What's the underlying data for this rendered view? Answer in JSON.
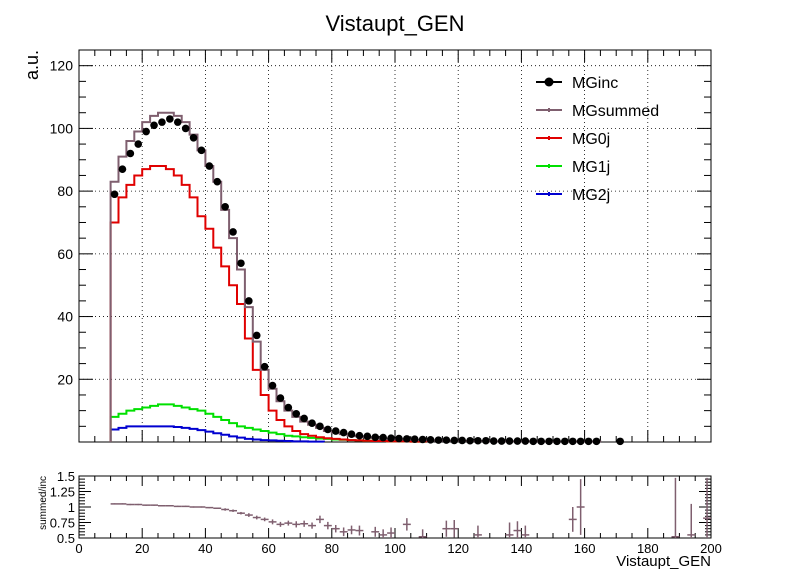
{
  "chart_data": [
    {
      "type": "line",
      "title": "Vistaupt_GEN",
      "xlabel": "",
      "ylabel": "a.u.",
      "xlim": [
        0,
        200
      ],
      "ylim": [
        0,
        125
      ],
      "x_ticks": [
        "0",
        "20",
        "40",
        "60",
        "80",
        "100",
        "120",
        "140",
        "160",
        "180",
        "200"
      ],
      "y_ticks": [
        "20",
        "40",
        "60",
        "80",
        "100",
        "120"
      ],
      "grid": true,
      "legend_position": "top-right",
      "bin_width": 2.5,
      "x_start": 10,
      "series": [
        {
          "name": "MGinc",
          "style": "markers",
          "color": "#000000",
          "values": [
            79,
            87,
            92,
            95,
            99,
            101,
            102,
            103,
            102,
            100,
            97,
            93,
            88,
            83,
            75,
            67,
            57,
            45,
            34,
            24,
            18,
            14,
            11,
            9,
            7.5,
            6,
            5,
            4,
            3.5,
            3,
            2.5,
            2,
            1.8,
            1.5,
            1.4,
            1.2,
            1.1,
            1,
            0.9,
            0.8,
            0.7,
            0.6,
            0.6,
            0.5,
            0.5,
            0.4,
            0.4,
            0.4,
            0.3,
            0.3,
            0.3,
            0.3,
            0.3,
            0.2,
            0.2,
            0.2,
            0.2,
            0.2,
            0.2,
            0.2,
            0.2,
            0.2,
            0,
            0,
            0.2
          ]
        },
        {
          "name": "MGsummed",
          "style": "step",
          "color": "#7f5f6f",
          "values": [
            83,
            91,
            96,
            99,
            102,
            104,
            105,
            105,
            104,
            102,
            98,
            93,
            88,
            83,
            74,
            65,
            55,
            43,
            32,
            23,
            17,
            13,
            10,
            8,
            6.5,
            5.5,
            4.5,
            3.5,
            3,
            2.5,
            2,
            1.8,
            1.5,
            1.3,
            1.1,
            1,
            0.9,
            0.8,
            0.7,
            0.6,
            0.5,
            0.5,
            0.4,
            0.4,
            0.3,
            0.3,
            0.3,
            0.3,
            0.2,
            0.2,
            0.2,
            0.2,
            0.2,
            0.2,
            0.1,
            0.1,
            0.1,
            0.1,
            0.1,
            0.1,
            0.1,
            0.1
          ]
        },
        {
          "name": "MG0j",
          "style": "step",
          "color": "#e00000",
          "values": [
            70,
            78,
            82,
            85,
            87,
            88,
            88,
            87,
            85,
            82,
            78,
            72,
            68,
            62,
            56,
            50,
            44,
            33,
            23,
            15,
            10,
            7,
            5,
            3.5,
            2.5,
            2,
            1.5,
            1.2,
            1,
            0.8,
            0.6,
            0.5,
            0.4,
            0.3,
            0.3,
            0.2,
            0.2,
            0.2,
            0.1,
            0.1
          ]
        },
        {
          "name": "MG1j",
          "style": "step",
          "color": "#00e000",
          "values": [
            8,
            9,
            10,
            10.5,
            11,
            11.5,
            12,
            12,
            11.5,
            11,
            10.5,
            10,
            9,
            8,
            7,
            6,
            5,
            4.5,
            4,
            3.5,
            3,
            2.5,
            2,
            1.8,
            1.5,
            1.3,
            1.1,
            1,
            0.8,
            0.7,
            0.6,
            0.5,
            0.4,
            0.3,
            0.3,
            0.2,
            0.2,
            0.2,
            0.1,
            0.1
          ]
        },
        {
          "name": "MG2j",
          "style": "step",
          "color": "#0000d0",
          "values": [
            4,
            4.5,
            5,
            5,
            5,
            5,
            5,
            5,
            4.8,
            4.5,
            4.2,
            3.8,
            3.3,
            2.8,
            2.3,
            1.8,
            1.4,
            1,
            0.8,
            0.6,
            0.5,
            0.4,
            0.3,
            0.2,
            0.2,
            0.1,
            0.1
          ]
        }
      ]
    },
    {
      "type": "scatter",
      "title": "",
      "xlabel": "Vistaupt_GEN",
      "ylabel": "summed/inc",
      "xlim": [
        0,
        200
      ],
      "ylim": [
        0.5,
        1.5
      ],
      "x_ticks": [
        "0",
        "20",
        "40",
        "60",
        "80",
        "100",
        "120",
        "140",
        "160",
        "180",
        "200"
      ],
      "y_ticks": [
        "0.5",
        "0.75",
        "1",
        "1.25",
        "1.5"
      ],
      "grid": false,
      "series": [
        {
          "name": "",
          "color": "#7f5f6f",
          "points": [
            {
              "x": 11.25,
              "y": 1.05,
              "err": 0.01
            },
            {
              "x": 13.75,
              "y": 1.05,
              "err": 0.01
            },
            {
              "x": 16.25,
              "y": 1.04,
              "err": 0.01
            },
            {
              "x": 18.75,
              "y": 1.04,
              "err": 0.01
            },
            {
              "x": 21.25,
              "y": 1.03,
              "err": 0.01
            },
            {
              "x": 23.75,
              "y": 1.03,
              "err": 0.01
            },
            {
              "x": 26.25,
              "y": 1.02,
              "err": 0.01
            },
            {
              "x": 28.75,
              "y": 1.02,
              "err": 0.01
            },
            {
              "x": 31.25,
              "y": 1.01,
              "err": 0.01
            },
            {
              "x": 33.75,
              "y": 1.01,
              "err": 0.01
            },
            {
              "x": 36.25,
              "y": 1.0,
              "err": 0.01
            },
            {
              "x": 38.75,
              "y": 1.0,
              "err": 0.01
            },
            {
              "x": 41.25,
              "y": 0.99,
              "err": 0.01
            },
            {
              "x": 43.75,
              "y": 0.98,
              "err": 0.01
            },
            {
              "x": 46.25,
              "y": 0.96,
              "err": 0.02
            },
            {
              "x": 48.75,
              "y": 0.94,
              "err": 0.02
            },
            {
              "x": 51.25,
              "y": 0.9,
              "err": 0.02
            },
            {
              "x": 53.75,
              "y": 0.87,
              "err": 0.03
            },
            {
              "x": 56.25,
              "y": 0.83,
              "err": 0.03
            },
            {
              "x": 58.75,
              "y": 0.8,
              "err": 0.03
            },
            {
              "x": 61.25,
              "y": 0.76,
              "err": 0.04
            },
            {
              "x": 63.75,
              "y": 0.72,
              "err": 0.04
            },
            {
              "x": 66.25,
              "y": 0.74,
              "err": 0.04
            },
            {
              "x": 68.75,
              "y": 0.72,
              "err": 0.05
            },
            {
              "x": 71.25,
              "y": 0.73,
              "err": 0.05
            },
            {
              "x": 73.75,
              "y": 0.7,
              "err": 0.05
            },
            {
              "x": 76.25,
              "y": 0.8,
              "err": 0.06
            },
            {
              "x": 78.75,
              "y": 0.7,
              "err": 0.06
            },
            {
              "x": 81.25,
              "y": 0.65,
              "err": 0.06
            },
            {
              "x": 83.75,
              "y": 0.6,
              "err": 0.07
            },
            {
              "x": 86.25,
              "y": 0.63,
              "err": 0.07
            },
            {
              "x": 88.75,
              "y": 0.62,
              "err": 0.08
            },
            {
              "x": 93.75,
              "y": 0.6,
              "err": 0.08
            },
            {
              "x": 96.25,
              "y": 0.55,
              "err": 0.09
            },
            {
              "x": 98.75,
              "y": 0.58,
              "err": 0.09
            },
            {
              "x": 103.75,
              "y": 0.72,
              "err": 0.1
            },
            {
              "x": 108.75,
              "y": 0.52,
              "err": 0.12
            },
            {
              "x": 116.25,
              "y": 0.65,
              "err": 0.13
            },
            {
              "x": 118.75,
              "y": 0.65,
              "err": 0.14
            },
            {
              "x": 126.25,
              "y": 0.55,
              "err": 0.15
            },
            {
              "x": 136.25,
              "y": 0.55,
              "err": 0.2
            },
            {
              "x": 138.75,
              "y": 0.62,
              "err": 0.15
            },
            {
              "x": 141.25,
              "y": 0.55,
              "err": 0.15
            },
            {
              "x": 156.25,
              "y": 0.8,
              "err": 0.2
            },
            {
              "x": 158.75,
              "y": 1.0,
              "err": 0.45
            },
            {
              "x": 188.75,
              "y": 0.52,
              "err": 0.95
            },
            {
              "x": 193.75,
              "y": 0.55,
              "err": 0.5
            },
            {
              "x": 198.75,
              "y": 0.82,
              "err": 0.65
            }
          ]
        }
      ]
    }
  ]
}
